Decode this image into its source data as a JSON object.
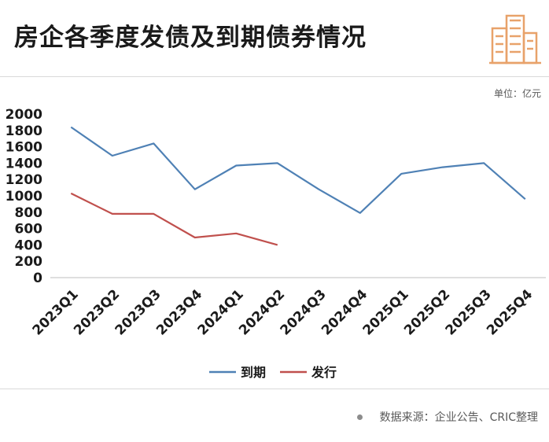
{
  "title": "房企各季度发债及到期债券情况",
  "unit_label": "单位：亿元",
  "source": {
    "label": "数据来源：",
    "text": "企业公告、CRIC整理"
  },
  "colors": {
    "maturity": "#4f81b5",
    "issuance": "#c0504d",
    "axis": "#bfbfbf",
    "logo": "#e8a26a"
  },
  "chart_data": {
    "type": "line",
    "categories": [
      "2023Q1",
      "2023Q2",
      "2023Q3",
      "2023Q4",
      "2024Q1",
      "2024Q2",
      "2024Q3",
      "2024Q4",
      "2025Q1",
      "2025Q2",
      "2025Q3",
      "2025Q4"
    ],
    "series": [
      {
        "name": "到期",
        "values": [
          1840,
          1490,
          1640,
          1080,
          1370,
          1400,
          1080,
          790,
          1270,
          1350,
          1400,
          960
        ]
      },
      {
        "name": "发行",
        "values": [
          1030,
          780,
          780,
          490,
          540,
          400,
          null,
          null,
          null,
          null,
          null,
          null
        ]
      }
    ],
    "ylim": [
      0,
      2000
    ],
    "yticks": [
      "0",
      "200",
      "400",
      "600",
      "800",
      "1000",
      "1200",
      "1400",
      "1600",
      "1800",
      "2000"
    ],
    "grid": false,
    "legend_position": "bottom"
  }
}
